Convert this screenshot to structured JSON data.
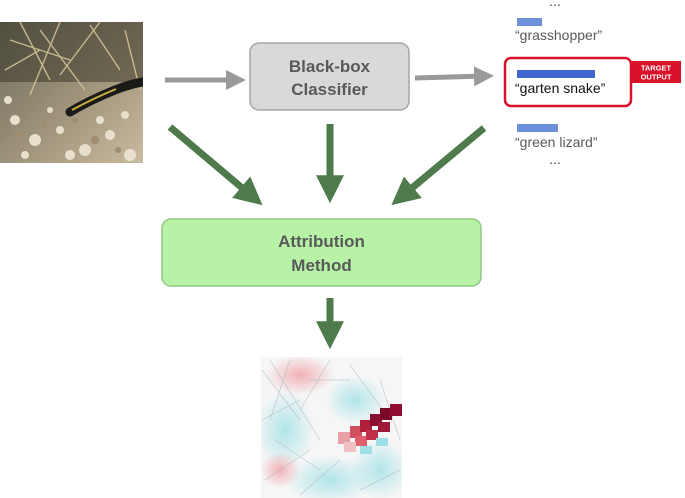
{
  "classifier": {
    "line1": "Black-box",
    "line2": "Classifier"
  },
  "attribution": {
    "line1": "Attribution",
    "line2": "Method"
  },
  "outputs": {
    "top_ellipsis": "...",
    "labels": [
      {
        "text": "“grasshopper”",
        "highlighted": false
      },
      {
        "text": "“garten snake”",
        "highlighted": true
      },
      {
        "text": "“green lizard”",
        "highlighted": false
      }
    ],
    "bottom_ellipsis": "...",
    "badge": {
      "line1": "TARGET",
      "line2": "OUTPUT"
    }
  },
  "images": {
    "input": "snake-photo",
    "output": "attribution-heatmap"
  },
  "colors": {
    "gray_arrow": "#9a9a9a",
    "green_arrow": "#4f7a4c",
    "classifier_fill": "#d9d9d9",
    "attribution_fill": "#b7f2a6",
    "bar": "#6b8fd8",
    "highlight_bar": "#3f66cf",
    "target_red": "#d8102a"
  }
}
